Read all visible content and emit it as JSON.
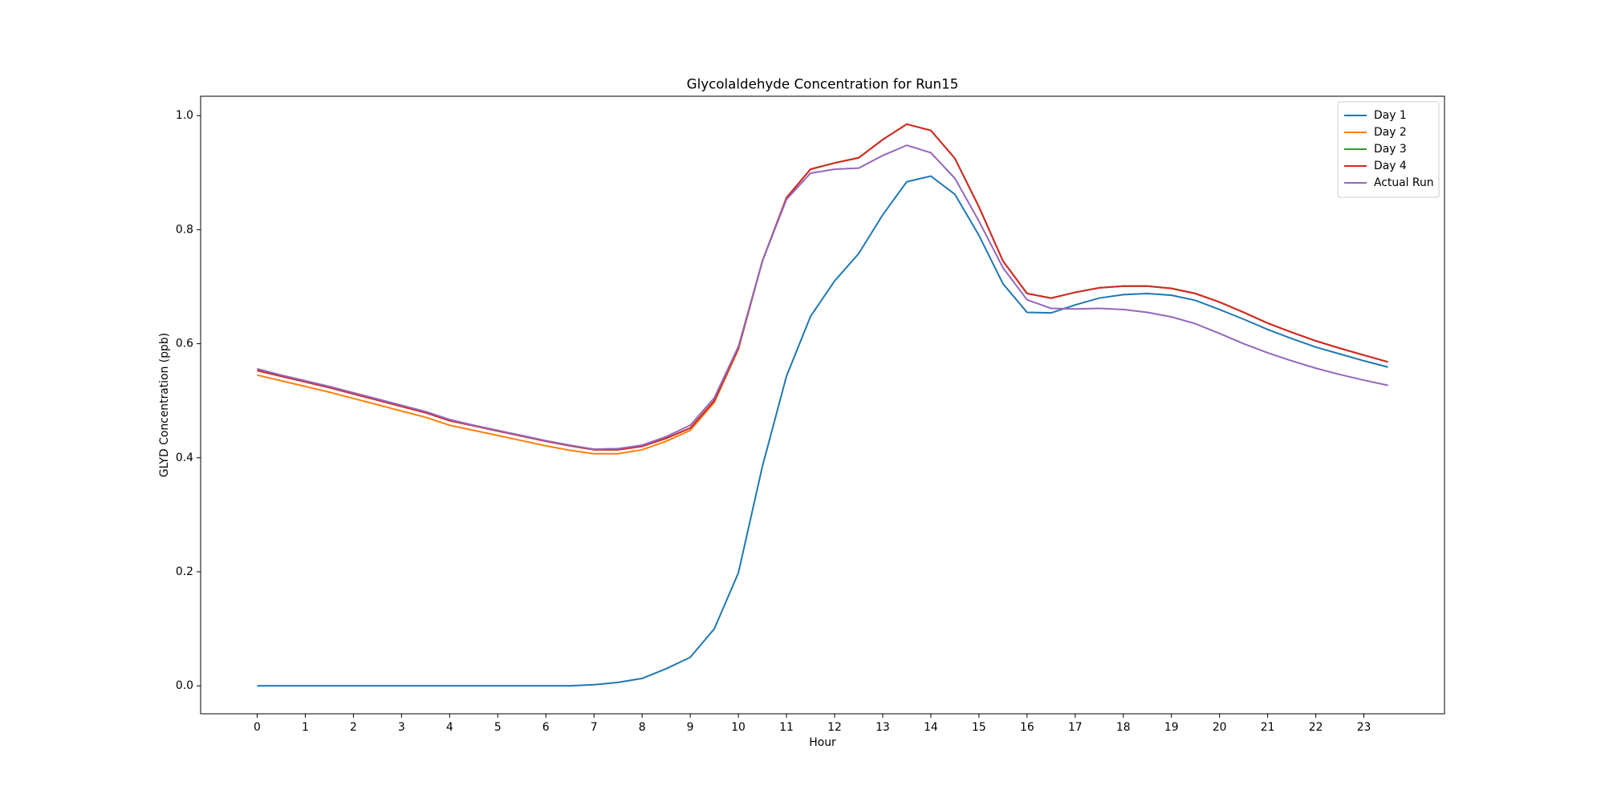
{
  "chart_data": {
    "type": "line",
    "title": "Glycolaldehyde Concentration for Run15",
    "xlabel": "Hour",
    "ylabel": "GLYD Concentration (ppb)",
    "x": [
      0,
      0.5,
      1,
      1.5,
      2,
      2.5,
      3,
      3.5,
      4,
      4.5,
      5,
      5.5,
      6,
      6.5,
      7,
      7.5,
      8,
      8.5,
      9,
      9.5,
      10,
      10.5,
      11,
      11.5,
      12,
      12.5,
      13,
      13.5,
      14,
      14.5,
      15,
      15.5,
      16,
      16.5,
      17,
      17.5,
      18,
      18.5,
      19,
      19.5,
      20,
      20.5,
      21,
      21.5,
      22,
      22.5,
      23,
      23.5
    ],
    "series": [
      {
        "name": "Day 1",
        "color": "#1f77b4",
        "values": [
          0,
          0,
          0,
          0,
          0,
          0,
          0,
          0,
          0,
          0,
          0,
          0,
          0,
          0,
          0.002,
          0.006,
          0.013,
          0.03,
          0.05,
          0.1,
          0.198,
          0.385,
          0.543,
          0.648,
          0.71,
          0.758,
          0.826,
          0.884,
          0.894,
          0.862,
          0.79,
          0.705,
          0.655,
          0.654,
          0.668,
          0.68,
          0.686,
          0.688,
          0.685,
          0.676,
          0.66,
          0.643,
          0.625,
          0.609,
          0.594,
          0.582,
          0.57,
          0.559
        ]
      },
      {
        "name": "Day 2",
        "color": "#ff7f0e",
        "values": [
          0.545,
          0.535,
          0.525,
          0.515,
          0.504,
          0.493,
          0.482,
          0.471,
          0.457,
          0.448,
          0.439,
          0.43,
          0.421,
          0.413,
          0.407,
          0.407,
          0.414,
          0.429,
          0.448,
          0.497,
          0.59,
          0.745,
          0.856,
          0.906,
          0.917,
          0.926,
          0.958,
          0.985,
          0.974,
          0.925,
          0.84,
          0.745,
          0.688,
          0.68,
          0.69,
          0.698,
          0.701,
          0.701,
          0.697,
          0.688,
          0.673,
          0.655,
          0.636,
          0.62,
          0.605,
          0.592,
          0.58,
          0.568
        ]
      },
      {
        "name": "Day 3",
        "color": "#2ca02c",
        "values": [
          0.553,
          0.543,
          0.533,
          0.523,
          0.512,
          0.501,
          0.49,
          0.479,
          0.465,
          0.456,
          0.447,
          0.438,
          0.429,
          0.421,
          0.414,
          0.414,
          0.42,
          0.434,
          0.452,
          0.5,
          0.592,
          0.745,
          0.856,
          0.906,
          0.917,
          0.926,
          0.958,
          0.985,
          0.974,
          0.925,
          0.84,
          0.745,
          0.688,
          0.68,
          0.69,
          0.698,
          0.701,
          0.701,
          0.697,
          0.688,
          0.673,
          0.655,
          0.636,
          0.62,
          0.605,
          0.592,
          0.58,
          0.568
        ]
      },
      {
        "name": "Day 4",
        "color": "#d62728",
        "values": [
          0.553,
          0.543,
          0.533,
          0.523,
          0.512,
          0.501,
          0.49,
          0.479,
          0.465,
          0.456,
          0.447,
          0.438,
          0.429,
          0.421,
          0.414,
          0.414,
          0.42,
          0.434,
          0.452,
          0.5,
          0.592,
          0.745,
          0.856,
          0.906,
          0.917,
          0.926,
          0.958,
          0.985,
          0.974,
          0.925,
          0.84,
          0.745,
          0.688,
          0.68,
          0.69,
          0.698,
          0.701,
          0.701,
          0.697,
          0.688,
          0.673,
          0.655,
          0.636,
          0.62,
          0.605,
          0.592,
          0.58,
          0.568
        ]
      },
      {
        "name": "Actual Run",
        "color": "#9467bd",
        "values": [
          0.556,
          0.545,
          0.535,
          0.525,
          0.514,
          0.503,
          0.492,
          0.481,
          0.467,
          0.457,
          0.448,
          0.439,
          0.43,
          0.422,
          0.415,
          0.416,
          0.422,
          0.437,
          0.457,
          0.505,
          0.595,
          0.745,
          0.853,
          0.899,
          0.906,
          0.908,
          0.93,
          0.948,
          0.935,
          0.89,
          0.815,
          0.733,
          0.677,
          0.662,
          0.661,
          0.662,
          0.66,
          0.655,
          0.647,
          0.635,
          0.618,
          0.6,
          0.584,
          0.57,
          0.557,
          0.546,
          0.536,
          0.527
        ]
      }
    ],
    "xlim": [
      -1.175,
      24.675
    ],
    "xticks": [
      0,
      1,
      2,
      3,
      4,
      5,
      6,
      7,
      8,
      9,
      10,
      11,
      12,
      13,
      14,
      15,
      16,
      17,
      18,
      19,
      20,
      21,
      22,
      23
    ],
    "ylim": [
      -0.049,
      1.034
    ],
    "yticks": [
      {
        "value": 0,
        "label": "0.0"
      },
      0.2,
      0.4,
      0.6,
      0.8,
      {
        "value": 1,
        "label": "1.0"
      }
    ],
    "legend": "upper right",
    "grid": false
  }
}
